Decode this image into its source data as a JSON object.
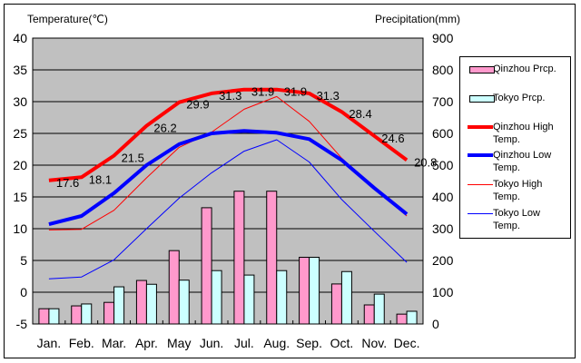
{
  "chart_data": {
    "type": "bar+line",
    "categories": [
      "Jan.",
      "Feb.",
      "Mar.",
      "Apr.",
      "May",
      "Jun.",
      "Jul.",
      "Aug.",
      "Sep.",
      "Oct.",
      "Nov.",
      "Dec."
    ],
    "left_axis": {
      "title": "Temperature(℃)",
      "range": [
        -5,
        40
      ],
      "ticks": [
        40,
        35,
        30,
        25,
        20,
        15,
        10,
        5,
        0,
        -5
      ]
    },
    "right_axis": {
      "title": "Precipitation(mm)",
      "range": [
        0,
        900
      ],
      "ticks": [
        900,
        800,
        700,
        600,
        500,
        400,
        300,
        200,
        100,
        0
      ]
    },
    "grid": true,
    "legend_position": "right",
    "bar_series": [
      {
        "name": "Qinzhou Prcp.",
        "color": "#ff99cc",
        "values": [
          48,
          57,
          68,
          137,
          231,
          366,
          418,
          418,
          210,
          126,
          60,
          31
        ]
      },
      {
        "name": "Tokyo Prcp.",
        "color": "#ccffff",
        "values": [
          48,
          63,
          117,
          125,
          138,
          168,
          154,
          168,
          210,
          165,
          94,
          40
        ]
      }
    ],
    "line_series": [
      {
        "name": "Qinzhou High Temp.",
        "color": "#ff0000",
        "width": "thick",
        "values": [
          17.6,
          18.1,
          21.5,
          26.2,
          29.9,
          31.3,
          31.9,
          31.9,
          31.3,
          28.4,
          24.6,
          20.8
        ],
        "labels": [
          "17.6",
          "18.1",
          "21.5",
          "26.2",
          "29.9",
          "31.3",
          "31.9",
          "31.9",
          "31.3",
          "28.4",
          "24.6",
          "20.8"
        ]
      },
      {
        "name": "Qinzhou Low Temp.",
        "color": "#0000ff",
        "width": "thick",
        "values": [
          10.7,
          12.0,
          15.6,
          20.0,
          23.3,
          25.0,
          25.4,
          25.1,
          24.1,
          20.8,
          16.4,
          12.3
        ]
      },
      {
        "name": "Tokyo High Temp.",
        "color": "#ff0000",
        "width": "thin",
        "values": [
          9.8,
          9.9,
          12.9,
          18.0,
          22.8,
          25.2,
          28.8,
          30.8,
          26.9,
          21.1,
          16.3,
          12.0
        ]
      },
      {
        "name": "Tokyo Low Temp.",
        "color": "#0000ff",
        "width": "thin",
        "values": [
          2.1,
          2.4,
          5.1,
          10.0,
          14.8,
          18.8,
          22.2,
          24.0,
          20.5,
          14.6,
          9.6,
          4.7
        ]
      }
    ],
    "plot_background": "#c0c0c0"
  },
  "legend": [
    {
      "label": "Qinzhou Prcp.",
      "kind": "box",
      "color": "#ff99cc"
    },
    {
      "label": "Tokyo Prcp.",
      "kind": "box",
      "color": "#ccffff"
    },
    {
      "label": "Qinzhou High Temp.",
      "kind": "thick-line",
      "color": "#ff0000"
    },
    {
      "label": "Qinzhou Low Temp.",
      "kind": "thick-line",
      "color": "#0000ff"
    },
    {
      "label": "Tokyo High Temp.",
      "kind": "thin-line",
      "color": "#ff0000"
    },
    {
      "label": "Tokyo Low Temp.",
      "kind": "thin-line",
      "color": "#0000ff"
    }
  ]
}
